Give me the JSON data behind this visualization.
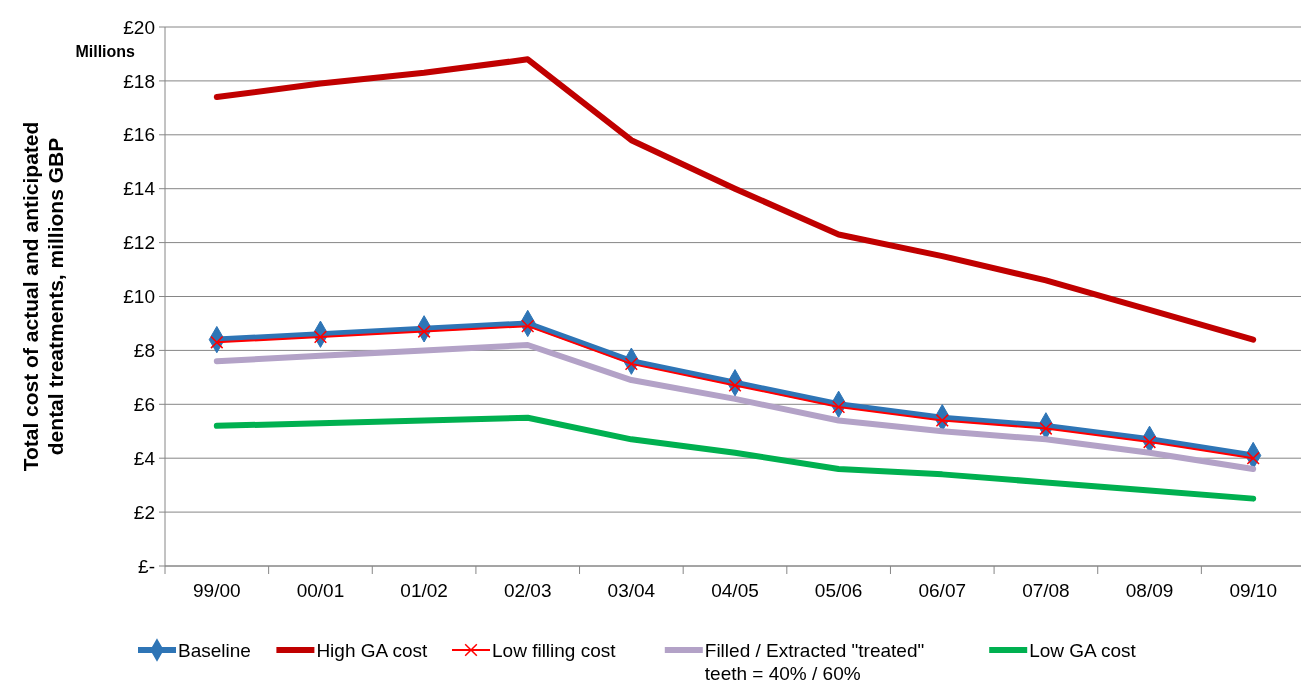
{
  "chart_data": {
    "type": "line",
    "ylabel": "Total cost of actual and anticipated dental treatments, millions GBP",
    "annotations": [
      "Millions"
    ],
    "categories": [
      "99/00",
      "00/01",
      "01/02",
      "02/03",
      "03/04",
      "04/05",
      "05/06",
      "06/07",
      "07/08",
      "08/09",
      "09/10"
    ],
    "series": [
      {
        "name": "Baseline",
        "color": "#2e75b6",
        "marker": "diamond",
        "values": [
          8.4,
          8.6,
          8.8,
          9.0,
          7.6,
          6.8,
          6.0,
          5.5,
          5.2,
          4.7,
          4.1
        ]
      },
      {
        "name": "High GA cost",
        "color": "#c00000",
        "marker": "none",
        "values": [
          17.4,
          17.9,
          18.3,
          18.8,
          15.8,
          14.0,
          12.3,
          11.5,
          10.6,
          9.5,
          8.4
        ]
      },
      {
        "name": "Low filling cost",
        "color": "#ff0000",
        "marker": "cross",
        "values": [
          8.3,
          8.5,
          8.7,
          8.9,
          7.5,
          6.7,
          5.9,
          5.4,
          5.1,
          4.6,
          4.0
        ]
      },
      {
        "name": "Filled / Extracted \"treated\" teeth =  40% / 60%",
        "color": "#b3a2c7",
        "marker": "none",
        "values": [
          7.6,
          7.8,
          8.0,
          8.2,
          6.9,
          6.2,
          5.4,
          5.0,
          4.7,
          4.2,
          3.6
        ]
      },
      {
        "name": "Low GA cost",
        "color": "#00b050",
        "marker": "none",
        "values": [
          5.2,
          5.3,
          5.4,
          5.5,
          4.7,
          4.2,
          3.6,
          3.4,
          3.1,
          2.8,
          2.5
        ]
      }
    ],
    "ylim": [
      0,
      20
    ],
    "yticks": [
      {
        "value": 0,
        "label": "£-"
      },
      {
        "value": 2,
        "label": "£2"
      },
      {
        "value": 4,
        "label": "£4"
      },
      {
        "value": 6,
        "label": "£6"
      },
      {
        "value": 8,
        "label": "£8"
      },
      {
        "value": 10,
        "label": "£10"
      },
      {
        "value": 12,
        "label": "£12"
      },
      {
        "value": 14,
        "label": "£14"
      },
      {
        "value": 16,
        "label": "£16"
      },
      {
        "value": 18,
        "label": "£18"
      },
      {
        "value": 20,
        "label": "£20"
      }
    ],
    "grid": "y",
    "legend": "bottom",
    "line_style": "solid"
  }
}
